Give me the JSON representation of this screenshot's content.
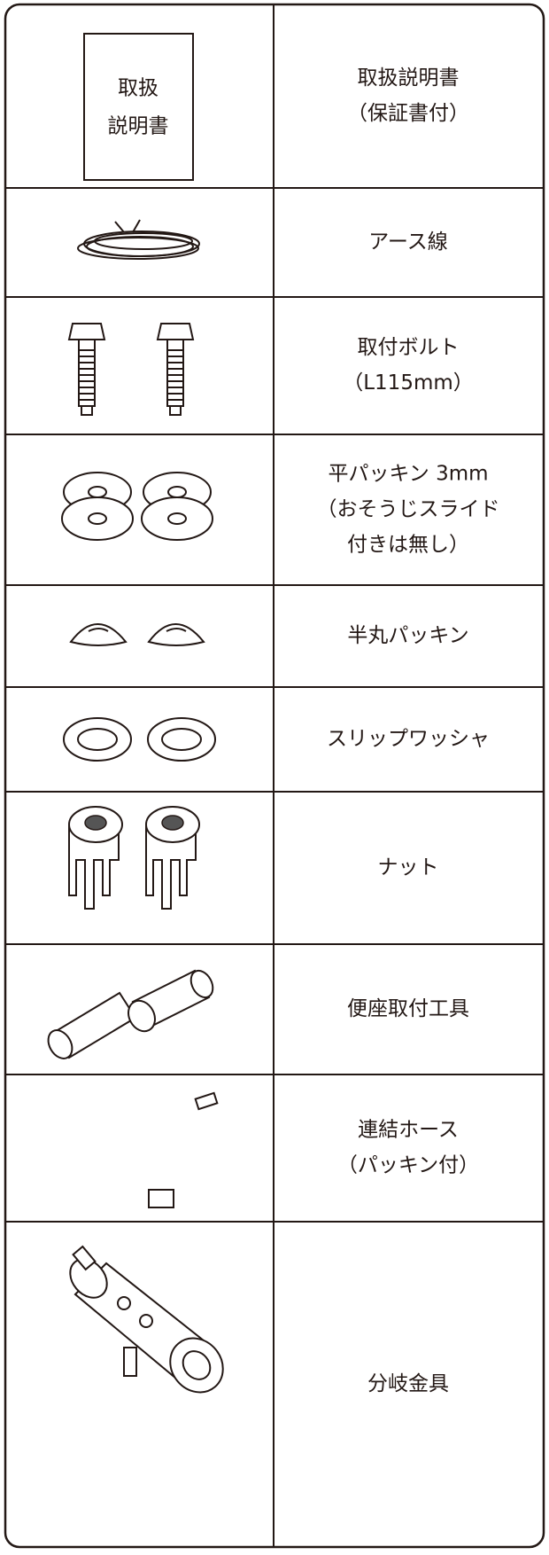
{
  "manual_icon_lines": [
    "取扱",
    "説明書"
  ],
  "items": [
    {
      "name_lines": [
        "取扱説明書",
        "（保証書付）"
      ]
    },
    {
      "name_lines": [
        "アース線"
      ]
    },
    {
      "name_lines": [
        "取付ボルト",
        "（L115mm）"
      ]
    },
    {
      "name_lines": [
        "平パッキン 3mm",
        "（おそうじスライド",
        "付きは無し）"
      ]
    },
    {
      "name_lines": [
        "半丸パッキン"
      ]
    },
    {
      "name_lines": [
        "スリップワッシャ"
      ]
    },
    {
      "name_lines": [
        "ナット"
      ]
    },
    {
      "name_lines": [
        "便座取付工具"
      ]
    },
    {
      "name_lines": [
        "連結ホース",
        "（パッキン付）"
      ]
    },
    {
      "name_lines": [
        "分岐金具"
      ]
    }
  ]
}
